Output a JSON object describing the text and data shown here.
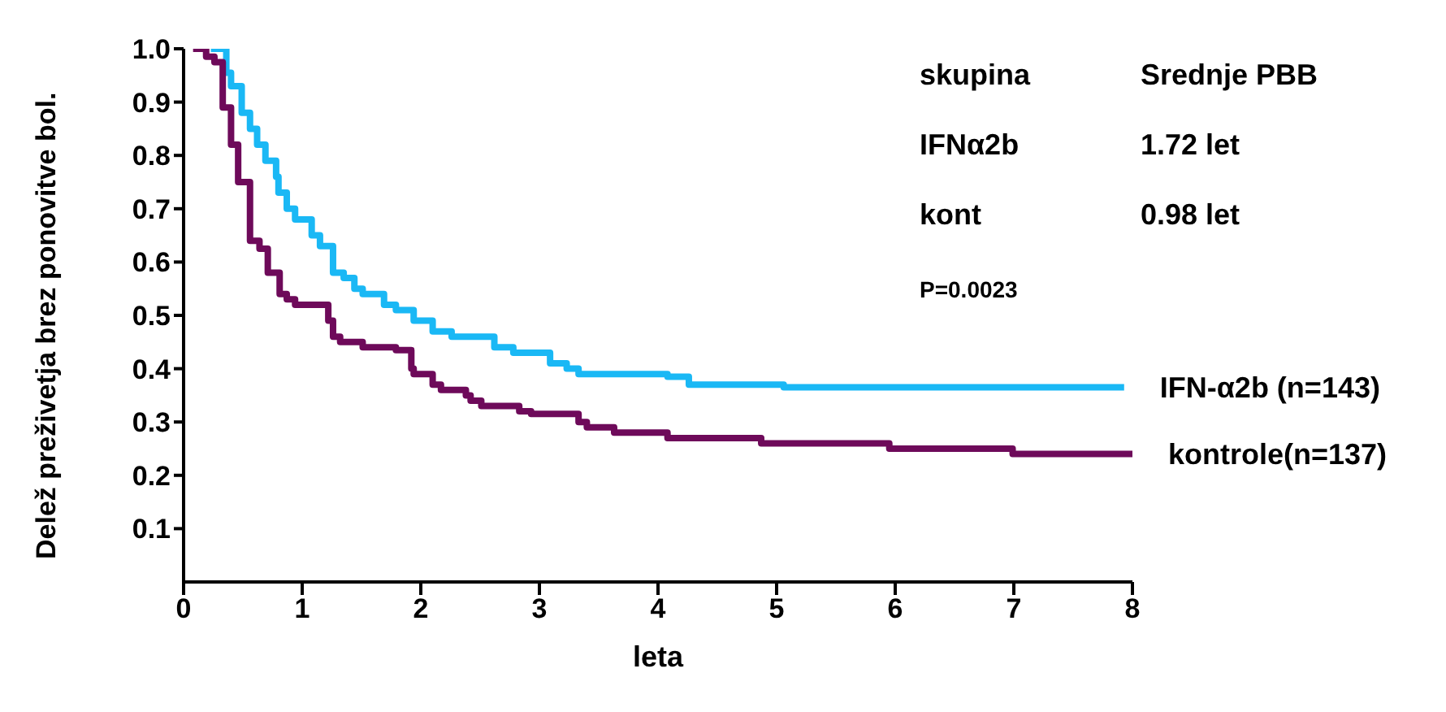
{
  "chart_data": {
    "type": "step",
    "xlabel": "leta",
    "ylabel": "Delež preživetja brez ponovitve bol.",
    "xlim": [
      0,
      8
    ],
    "xticks": [
      0,
      1,
      2,
      3,
      4,
      5,
      6,
      7,
      8
    ],
    "ylim": [
      0,
      1
    ],
    "yticks": [
      {
        "value": 0.1,
        "label": "0.1"
      },
      {
        "value": 0.2,
        "label": "0.2"
      },
      {
        "value": 0.3,
        "label": "0.3"
      },
      {
        "value": 0.4,
        "label": "0.4"
      },
      {
        "value": 0.5,
        "label": "0.5"
      },
      {
        "value": 0.6,
        "label": "0.6"
      },
      {
        "value": 0.7,
        "label": "0.7"
      },
      {
        "value": 0.8,
        "label": "0.8"
      },
      {
        "value": 0.9,
        "label": "0.9"
      },
      {
        "value": 1,
        "label": "1.0"
      }
    ],
    "grid": false,
    "legend": false,
    "annotations": [
      "skupina",
      "Srednje PBB",
      "IFNα2b",
      "1.72 let",
      "kont",
      "0.98 let",
      "P=0.0023"
    ],
    "series": [
      {
        "name": "IFN-α2b (n=143)",
        "color": "#1ab8f5",
        "x": [
          0.23,
          0.36,
          0.4,
          0.49,
          0.56,
          0.62,
          0.69,
          0.78,
          0.8,
          0.87,
          0.94,
          1.08,
          1.15,
          1.26,
          1.35,
          1.44,
          1.51,
          1.69,
          1.79,
          1.94,
          2.1,
          2.26,
          2.62,
          2.78,
          3.09,
          3.23,
          3.33,
          4.08,
          4.26,
          5.06,
          7.93
        ],
        "values": [
          1.0,
          0.955,
          0.93,
          0.88,
          0.85,
          0.82,
          0.79,
          0.76,
          0.73,
          0.7,
          0.68,
          0.65,
          0.63,
          0.58,
          0.57,
          0.55,
          0.54,
          0.52,
          0.51,
          0.49,
          0.47,
          0.46,
          0.44,
          0.43,
          0.41,
          0.4,
          0.39,
          0.385,
          0.37,
          0.365,
          0.365
        ]
      },
      {
        "name": "kontrole(n=137)",
        "color": "#6e0a5a",
        "x": [
          0.08,
          0.19,
          0.26,
          0.33,
          0.4,
          0.46,
          0.56,
          0.64,
          0.71,
          0.81,
          0.87,
          0.94,
          1.22,
          1.26,
          1.32,
          1.51,
          1.79,
          1.92,
          1.94,
          2.1,
          2.17,
          2.38,
          2.42,
          2.51,
          2.83,
          2.93,
          3.33,
          3.4,
          3.63,
          4.08,
          4.87,
          5.95,
          6.99,
          8.0
        ],
        "values": [
          1.0,
          0.985,
          0.975,
          0.89,
          0.82,
          0.75,
          0.64,
          0.625,
          0.58,
          0.54,
          0.53,
          0.52,
          0.49,
          0.46,
          0.45,
          0.44,
          0.435,
          0.4,
          0.39,
          0.37,
          0.36,
          0.35,
          0.34,
          0.33,
          0.32,
          0.315,
          0.3,
          0.29,
          0.28,
          0.27,
          0.26,
          0.25,
          0.24,
          0.24
        ]
      }
    ]
  }
}
